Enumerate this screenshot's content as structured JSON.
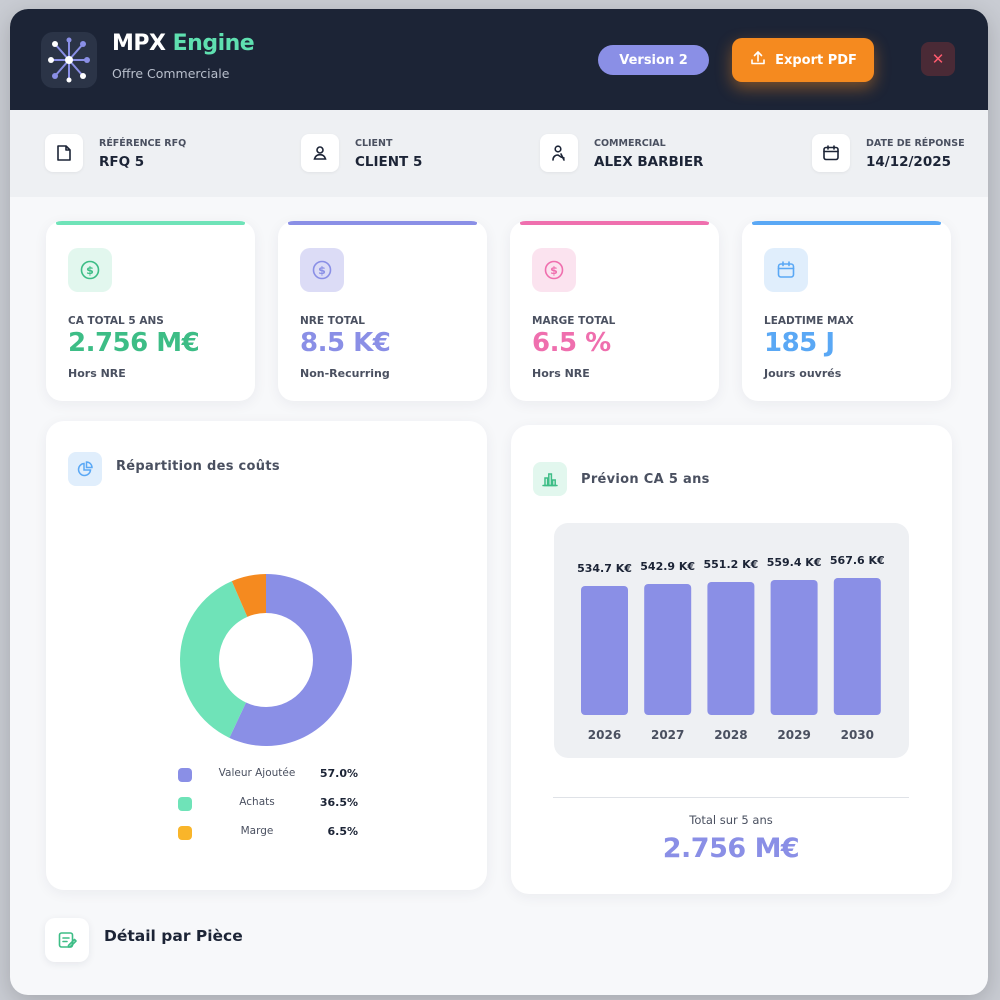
{
  "header": {
    "title_part1": "MPX",
    "title_part2": "Engine",
    "subtitle": "Offre Commerciale",
    "version_label": "Version  2",
    "export_label": "Export PDF",
    "close_label": "✕",
    "colors": {
      "bar": "#1c2436",
      "accent": "#5fe0b0",
      "version": "#8a8fe6",
      "export": "#f58a1f",
      "close": "#ff5a6e"
    }
  },
  "info": [
    {
      "label": "RÉFÉRENCE RFQ",
      "value": "RFQ 5",
      "icon": "document-icon"
    },
    {
      "label": "CLIENT",
      "value": "CLIENT 5",
      "icon": "user-icon"
    },
    {
      "label": "COMMERCIAL",
      "value": "ALEX BARBIER",
      "icon": "salesperson-icon"
    },
    {
      "label": "DATE DE RÉPONSE",
      "value": "14/12/2025",
      "icon": "calendar-icon"
    }
  ],
  "kpis": [
    {
      "label": "CA TOTAL 5 ANS",
      "value": "2.756 M€",
      "sub": "Hors NRE",
      "color": "#3dbd86",
      "icon": "dollar-icon"
    },
    {
      "label": "NRE TOTAL",
      "value": "8.5 K€",
      "sub": "Non-Recurring",
      "color": "#8a8fe6",
      "icon": "dollar-icon"
    },
    {
      "label": "MARGE TOTAL",
      "value": "6.5 %",
      "sub": "Hors NRE",
      "color": "#ef6fae",
      "icon": "dollar-icon"
    },
    {
      "label": "LEADTIME MAX",
      "value": "185 J",
      "sub": "Jours ouvrés",
      "color": "#5aa8f5",
      "icon": "calendar-icon"
    }
  ],
  "costs": {
    "title": "Répartition des coûts",
    "icon": "pie-chart-icon",
    "legend": [
      {
        "label": "Valeur Ajoutée",
        "pct": "57.0%",
        "color": "#8a8fe6"
      },
      {
        "label": "Achats",
        "pct": "36.5%",
        "color": "#6fe3b8"
      },
      {
        "label": "Marge",
        "pct": "6.5%",
        "color": "#f9b52a"
      }
    ]
  },
  "forecast": {
    "title": "Prévion CA 5 ans",
    "icon": "bar-chart-icon",
    "total_label": "Total sur 5 ans",
    "total_value": "2.756 M€"
  },
  "detail": {
    "title": "Détail par Pièce",
    "icon": "edit-icon"
  },
  "chart_data": [
    {
      "type": "pie",
      "categories": [
        "Valeur Ajoutée",
        "Achats",
        "Marge"
      ],
      "values": [
        57.0,
        36.5,
        6.5
      ],
      "colors": [
        "#8a8fe6",
        "#6fe3b8",
        "#f58a1f"
      ],
      "title": "Répartition des coûts",
      "donut": true
    },
    {
      "type": "bar",
      "categories": [
        "2026",
        "2027",
        "2028",
        "2029",
        "2030"
      ],
      "values": [
        534.7,
        542.9,
        551.2,
        559.4,
        567.6
      ],
      "data_labels": [
        "534.7 K€",
        "542.9 K€",
        "551.2 K€",
        "559.4 K€",
        "567.6 K€"
      ],
      "title": "Prévion CA 5 ans",
      "unit": "K€",
      "color": "#8a8fe6",
      "grid": false
    }
  ]
}
